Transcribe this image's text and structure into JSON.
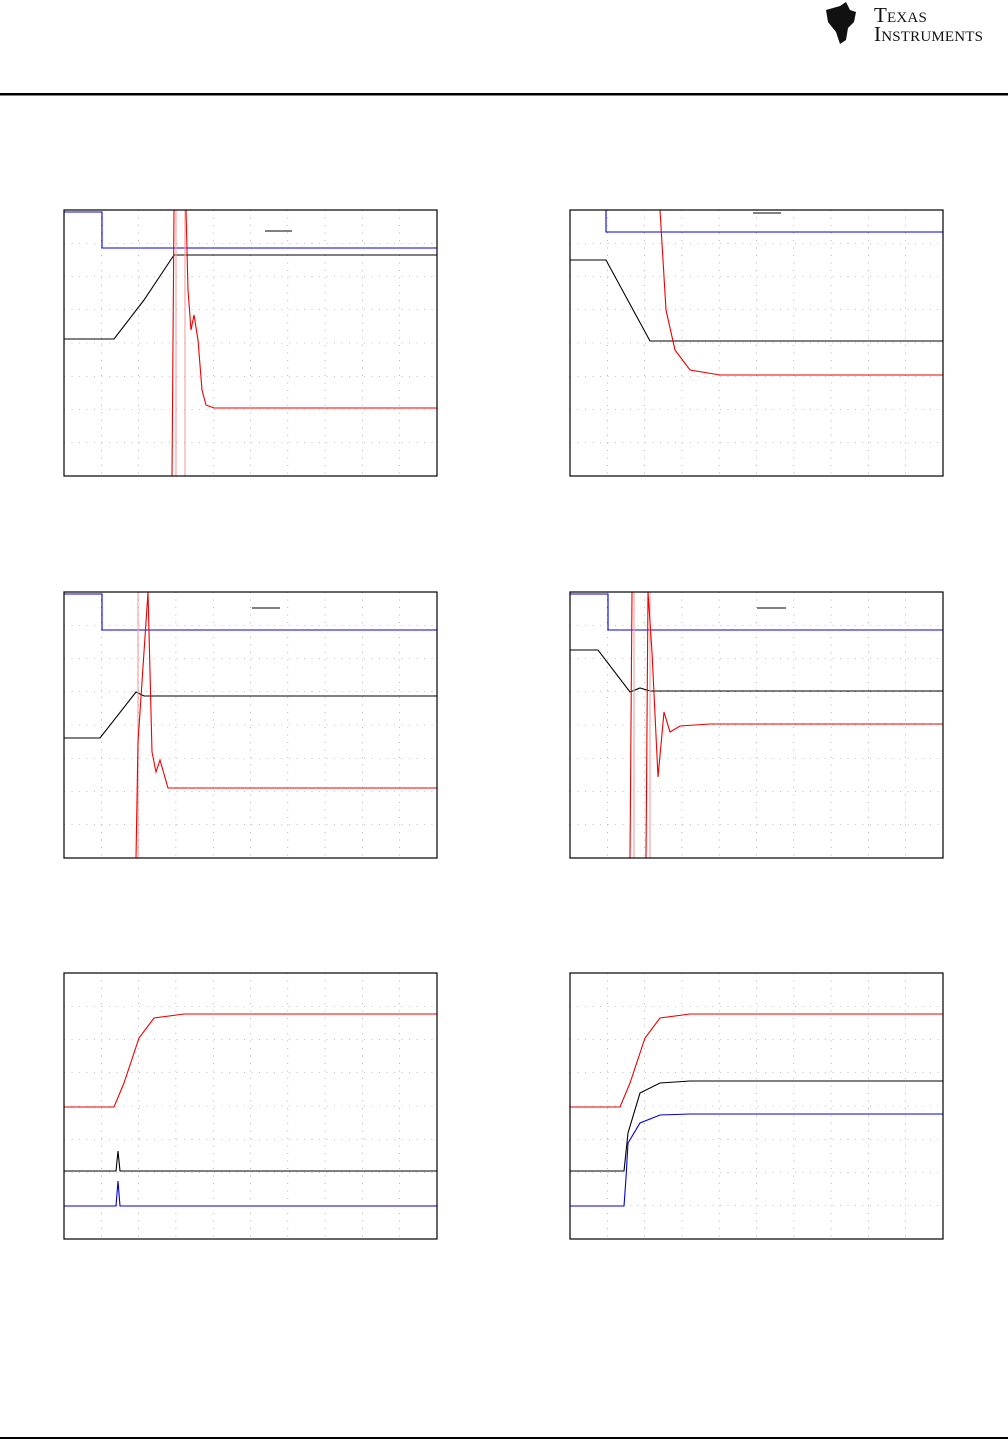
{
  "header": {
    "logo_line1": "Texas",
    "logo_line2": "Instruments"
  }
}
